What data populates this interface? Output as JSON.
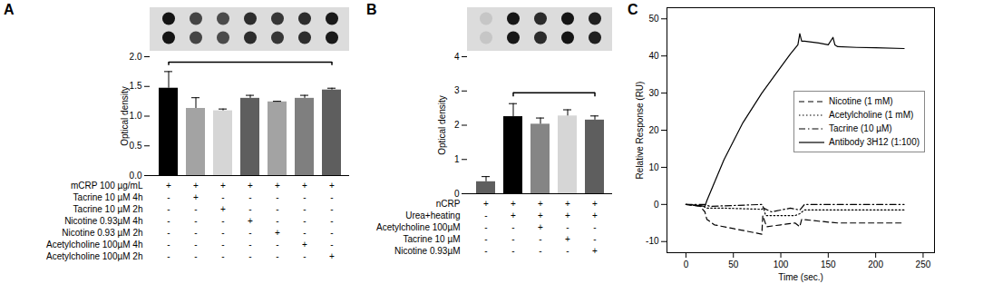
{
  "chart_data": [
    {
      "panel_label": "A",
      "type": "bar",
      "ylabel": "Optical density",
      "categories": [
        null,
        null,
        null,
        null,
        null,
        null,
        null
      ],
      "values": [
        1.47,
        1.13,
        1.09,
        1.3,
        1.24,
        1.3,
        1.44
      ],
      "errors": [
        0.28,
        0.18,
        0.03,
        0.05,
        0.01,
        0.05,
        0.03
      ],
      "colors": [
        "#000000",
        "#a3a3a3",
        "#d6d6d6",
        "#5e5e5e",
        "#a3a3a3",
        "#7f7f7f",
        "#5e5e5e"
      ],
      "ylim": [
        0,
        2
      ],
      "yticks": [
        {
          "value": 0,
          "label": "0.0"
        },
        {
          "value": 0.5,
          "label": "0.5"
        },
        {
          "value": 1,
          "label": "1.0"
        },
        {
          "value": 1.5,
          "label": "1.5"
        },
        {
          "value": 2,
          "label": "2.0"
        }
      ],
      "tick_labels": "y",
      "bracket": [
        0,
        6
      ],
      "conditions": [
        {
          "label": "mCRP 100 µg/mL",
          "marks": [
            "+",
            "+",
            "+",
            "+",
            "+",
            "+",
            "+"
          ]
        },
        {
          "label": "Tacrine 10 µM 4h",
          "marks": [
            "-",
            "+",
            "-",
            "-",
            "-",
            "-",
            "-"
          ]
        },
        {
          "label": "Tacrine 10 µM 2h",
          "marks": [
            "-",
            "-",
            "+",
            "-",
            "-",
            "-",
            "-"
          ]
        },
        {
          "label": "Nicotine 0.93µM 4h",
          "marks": [
            "-",
            "-",
            "-",
            "+",
            "-",
            "-",
            "-"
          ]
        },
        {
          "label": "Nicotine 0.93 µM 2h",
          "marks": [
            "-",
            "-",
            "-",
            "-",
            "+",
            "-",
            "-"
          ]
        },
        {
          "label": "Acetylcholine 100µM 4h",
          "marks": [
            "-",
            "-",
            "-",
            "-",
            "-",
            "+",
            "-"
          ]
        },
        {
          "label": "Acetylcholine 100µM 2h",
          "marks": [
            "-",
            "-",
            "-",
            "-",
            "-",
            "-",
            "+"
          ]
        }
      ]
    },
    {
      "panel_label": "B",
      "type": "bar",
      "ylabel": "Optical density",
      "categories": [
        null,
        null,
        null,
        null,
        null
      ],
      "values": [
        0.35,
        2.25,
        2.03,
        2.27,
        2.15
      ],
      "errors": [
        0.15,
        0.38,
        0.18,
        0.18,
        0.12
      ],
      "colors": [
        "#5e5e5e",
        "#000000",
        "#858585",
        "#d6d6d6",
        "#5e5e5e"
      ],
      "ylim": [
        0,
        4
      ],
      "yticks": [
        0,
        1,
        2,
        3,
        4
      ],
      "tick_labels": "y",
      "bracket": [
        1,
        4
      ],
      "conditions": [
        {
          "label": "nCRP",
          "marks": [
            "+",
            "+",
            "+",
            "+",
            "+"
          ]
        },
        {
          "label": "Urea+heating",
          "marks": [
            "-",
            "+",
            "+",
            "+",
            "+"
          ]
        },
        {
          "label": "Acetylcholine 100µM",
          "marks": [
            "-",
            "-",
            "+",
            "-",
            "-"
          ]
        },
        {
          "label": "Tacrine 10 µM",
          "marks": [
            "-",
            "-",
            "-",
            "+",
            "-"
          ]
        },
        {
          "label": "Nicotine 0.93µM",
          "marks": [
            "-",
            "-",
            "-",
            "-",
            "+"
          ]
        }
      ]
    },
    {
      "panel_label": "C",
      "type": "line",
      "xlabel": "Time (sec.)",
      "ylabel": "Relative Response (RU)",
      "xlim": [
        -20,
        262
      ],
      "xticks": [
        0,
        50,
        100,
        150,
        200,
        250
      ],
      "ylim": [
        -13,
        53
      ],
      "yticks": [
        -10,
        0,
        10,
        20,
        30,
        40,
        50
      ],
      "legend": "right",
      "series": [
        {
          "name": "Nicotine (1 mM)",
          "color": "#000000",
          "line_style": "dashed",
          "x": [
            0,
            15,
            20,
            22,
            30,
            50,
            70,
            80,
            81,
            85,
            100,
            115,
            120,
            122,
            140,
            160,
            200,
            230
          ],
          "values": [
            0,
            -0.5,
            -2,
            -4,
            -5.5,
            -6.5,
            -7.5,
            -8,
            -3,
            -6,
            -5.5,
            -5,
            -6,
            -4,
            -4.5,
            -5,
            -5,
            -5
          ]
        },
        {
          "name": "Acetylcholine (1 mM)",
          "color": "#000000",
          "line_style": "dotted",
          "x": [
            0,
            18,
            22,
            40,
            80,
            82,
            84,
            100,
            115,
            120,
            125,
            150,
            200,
            230
          ],
          "values": [
            0,
            -0.5,
            -1,
            -1,
            -1.3,
            -1,
            -3,
            -3,
            -3,
            -2.5,
            -1.5,
            -1.5,
            -1.5,
            -1.5
          ]
        },
        {
          "name": "Tacrine (10 µM)",
          "color": "#000000",
          "line_style": "dashdot",
          "x": [
            0,
            20,
            25,
            50,
            80,
            82,
            90,
            110,
            120,
            125,
            150,
            200,
            230
          ],
          "values": [
            0,
            0,
            -0.5,
            -0.3,
            0,
            -1,
            -2,
            -1,
            -1.5,
            0,
            0,
            0,
            0
          ]
        },
        {
          "name": "Antibody 3H12 (1:100)",
          "color": "#000000",
          "line_style": "solid",
          "x": [
            0,
            10,
            20,
            22,
            40,
            60,
            80,
            100,
            110,
            118,
            120,
            122,
            125,
            140,
            150,
            155,
            157,
            160,
            180,
            200,
            230
          ],
          "values": [
            0,
            -0.2,
            -0.5,
            1,
            12,
            22,
            30,
            37,
            40.5,
            43,
            46,
            44,
            44,
            43.5,
            43,
            45,
            43,
            42.5,
            42.3,
            42.2,
            42
          ]
        }
      ]
    }
  ]
}
